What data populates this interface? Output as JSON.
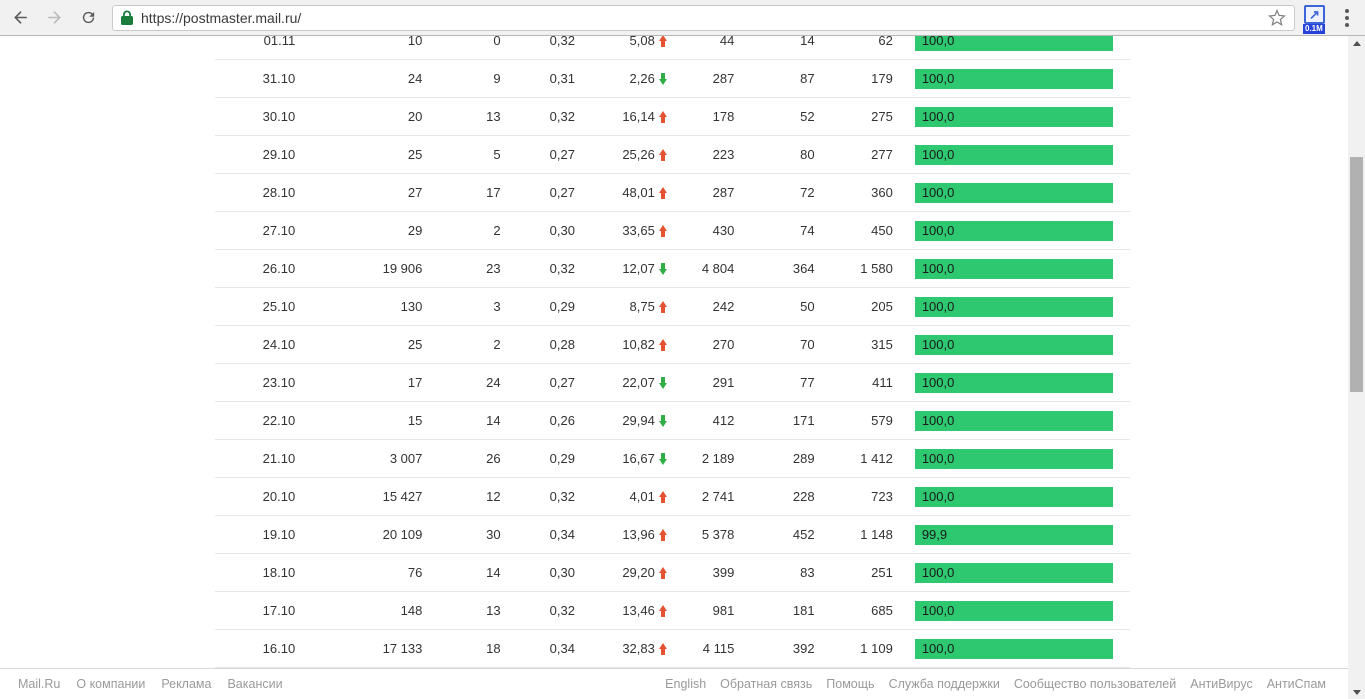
{
  "browser": {
    "url": "https://postmaster.mail.ru/",
    "extension_badge": "0.1M"
  },
  "colors": {
    "bar_green": "#2dc86f",
    "trend_up_red": "#e65332",
    "trend_down_green": "#2fae43",
    "lock_green": "#1a7d3c"
  },
  "chart_data": {
    "type": "table",
    "note": "per-day mail statistics, column headers scrolled out of view",
    "columns": [
      "date",
      "c1",
      "c2",
      "c3",
      "c4_pct_with_trend",
      "c5",
      "c6",
      "c7",
      "delivered_pct_bar"
    ]
  },
  "table": {
    "rows": [
      {
        "date": "01.11",
        "c1": "10",
        "c2": "0",
        "c3": "0,32",
        "c4": "5,08",
        "trend": "up",
        "c5": "44",
        "c6": "14",
        "c7": "62",
        "bar": "100,0"
      },
      {
        "date": "31.10",
        "c1": "24",
        "c2": "9",
        "c3": "0,31",
        "c4": "2,26",
        "trend": "down",
        "c5": "287",
        "c6": "87",
        "c7": "179",
        "bar": "100,0"
      },
      {
        "date": "30.10",
        "c1": "20",
        "c2": "13",
        "c3": "0,32",
        "c4": "16,14",
        "trend": "up",
        "c5": "178",
        "c6": "52",
        "c7": "275",
        "bar": "100,0"
      },
      {
        "date": "29.10",
        "c1": "25",
        "c2": "5",
        "c3": "0,27",
        "c4": "25,26",
        "trend": "up",
        "c5": "223",
        "c6": "80",
        "c7": "277",
        "bar": "100,0"
      },
      {
        "date": "28.10",
        "c1": "27",
        "c2": "17",
        "c3": "0,27",
        "c4": "48,01",
        "trend": "up",
        "c5": "287",
        "c6": "72",
        "c7": "360",
        "bar": "100,0"
      },
      {
        "date": "27.10",
        "c1": "29",
        "c2": "2",
        "c3": "0,30",
        "c4": "33,65",
        "trend": "up",
        "c5": "430",
        "c6": "74",
        "c7": "450",
        "bar": "100,0"
      },
      {
        "date": "26.10",
        "c1": "19 906",
        "c2": "23",
        "c3": "0,32",
        "c4": "12,07",
        "trend": "down",
        "c5": "4 804",
        "c6": "364",
        "c7": "1 580",
        "bar": "100,0"
      },
      {
        "date": "25.10",
        "c1": "130",
        "c2": "3",
        "c3": "0,29",
        "c4": "8,75",
        "trend": "up",
        "c5": "242",
        "c6": "50",
        "c7": "205",
        "bar": "100,0"
      },
      {
        "date": "24.10",
        "c1": "25",
        "c2": "2",
        "c3": "0,28",
        "c4": "10,82",
        "trend": "up",
        "c5": "270",
        "c6": "70",
        "c7": "315",
        "bar": "100,0"
      },
      {
        "date": "23.10",
        "c1": "17",
        "c2": "24",
        "c3": "0,27",
        "c4": "22,07",
        "trend": "down",
        "c5": "291",
        "c6": "77",
        "c7": "411",
        "bar": "100,0"
      },
      {
        "date": "22.10",
        "c1": "15",
        "c2": "14",
        "c3": "0,26",
        "c4": "29,94",
        "trend": "down",
        "c5": "412",
        "c6": "171",
        "c7": "579",
        "bar": "100,0"
      },
      {
        "date": "21.10",
        "c1": "3 007",
        "c2": "26",
        "c3": "0,29",
        "c4": "16,67",
        "trend": "down",
        "c5": "2 189",
        "c6": "289",
        "c7": "1 412",
        "bar": "100,0"
      },
      {
        "date": "20.10",
        "c1": "15 427",
        "c2": "12",
        "c3": "0,32",
        "c4": "4,01",
        "trend": "up",
        "c5": "2 741",
        "c6": "228",
        "c7": "723",
        "bar": "100,0"
      },
      {
        "date": "19.10",
        "c1": "20 109",
        "c2": "30",
        "c3": "0,34",
        "c4": "13,96",
        "trend": "up",
        "c5": "5 378",
        "c6": "452",
        "c7": "1 148",
        "bar": "99,9"
      },
      {
        "date": "18.10",
        "c1": "76",
        "c2": "14",
        "c3": "0,30",
        "c4": "29,20",
        "trend": "up",
        "c5": "399",
        "c6": "83",
        "c7": "251",
        "bar": "100,0"
      },
      {
        "date": "17.10",
        "c1": "148",
        "c2": "13",
        "c3": "0,32",
        "c4": "13,46",
        "trend": "up",
        "c5": "981",
        "c6": "181",
        "c7": "685",
        "bar": "100,0"
      },
      {
        "date": "16.10",
        "c1": "17 133",
        "c2": "18",
        "c3": "0,34",
        "c4": "32,83",
        "trend": "up",
        "c5": "4 115",
        "c6": "392",
        "c7": "1 109",
        "bar": "100,0"
      }
    ]
  },
  "footer": {
    "left": [
      "Mail.Ru",
      "О компании",
      "Реклама",
      "Вакансии"
    ],
    "right": [
      "English",
      "Обратная связь",
      "Помощь",
      "Служба поддержки",
      "Сообщество пользователей",
      "АнтиВирус",
      "АнтиСпам"
    ]
  }
}
